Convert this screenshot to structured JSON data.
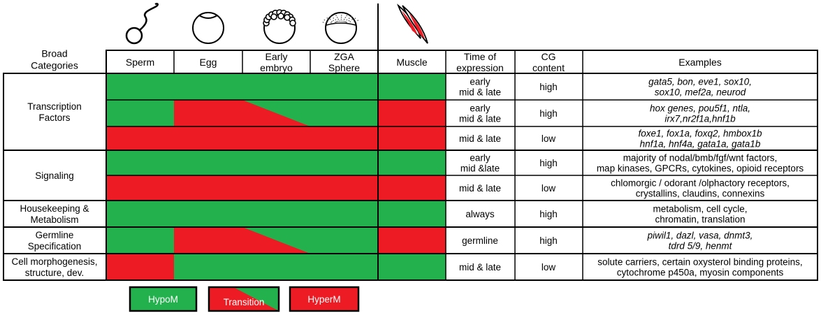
{
  "colors": {
    "hypo": "#22b14c",
    "hyper": "#ed1c24",
    "line": "#000000",
    "background": "#ffffff"
  },
  "header": {
    "broad_categories": [
      "Broad",
      "Categories"
    ],
    "stages": [
      {
        "label": [
          "Sperm"
        ],
        "icon": "sperm-icon"
      },
      {
        "label": [
          "Egg"
        ],
        "icon": "egg-icon"
      },
      {
        "label": [
          "Early",
          "embryo"
        ],
        "icon": "early-embryo-icon"
      },
      {
        "label": [
          "ZGA",
          "Sphere"
        ],
        "icon": "sphere-embryo-icon"
      },
      {
        "label": [
          "Muscle"
        ],
        "icon": "muscle-cells-icon"
      }
    ],
    "time_of_expression": [
      "Time of",
      "expression"
    ],
    "cg_content": [
      "CG",
      "content"
    ],
    "examples": "Examples"
  },
  "groups": [
    {
      "id": "tf",
      "label": [
        "Transcription",
        "Factors"
      ]
    },
    {
      "id": "signaling",
      "label": [
        "Signaling"
      ]
    },
    {
      "id": "housekeeping",
      "label": [
        "Housekeeping &",
        "Metabolism"
      ]
    },
    {
      "id": "germline",
      "label": [
        "Germline",
        "Specification"
      ]
    },
    {
      "id": "morpho",
      "label": [
        "Cell morphogenesis,",
        "structure, dev."
      ]
    }
  ],
  "rows": [
    {
      "group": "tf",
      "embryo_state": "hypo",
      "transition": null,
      "muscle_state": "hypo",
      "time": [
        "early",
        "mid & late"
      ],
      "cg": "high",
      "examples": [
        {
          "text": "gata5, bon, eve1, sox10,",
          "italic": true
        },
        {
          "text": "sox10, mef2a, neurod",
          "italic": true
        }
      ]
    },
    {
      "group": "tf",
      "embryo_state": "transition",
      "transition": "egg-to-sphere",
      "muscle_state": "hyper",
      "time": [
        "early",
        "mid & late"
      ],
      "cg": "high",
      "examples": [
        {
          "text": "hox genes, pou5f1, ntla,",
          "italic": true
        },
        {
          "text": "irx7,nr2f1a,hnf1b",
          "italic": true
        }
      ]
    },
    {
      "group": "tf",
      "embryo_state": "hyper",
      "transition": null,
      "muscle_state": "hyper",
      "time": [
        "mid & late"
      ],
      "cg": "low",
      "examples": [
        {
          "text": "foxe1, fox1a, foxq2, hmbox1b",
          "italic": true
        },
        {
          "text": "hnf1a, hnf4a, gata1a, gata1b",
          "italic": true
        }
      ]
    },
    {
      "group": "signaling",
      "embryo_state": "hypo",
      "transition": null,
      "muscle_state": "hypo",
      "time": [
        "early",
        "mid &late"
      ],
      "cg": "high",
      "examples": [
        {
          "text": "majority of nodal/bmb/fgf/wnt factors,",
          "italic": false
        },
        {
          "text": "map kinases, GPCRs, cytokines, opioid receptors",
          "italic": false
        }
      ]
    },
    {
      "group": "signaling",
      "embryo_state": "hyper",
      "transition": null,
      "muscle_state": "hyper",
      "time": [
        "mid & late"
      ],
      "cg": "low",
      "examples": [
        {
          "text": "chlomorgic / odorant /olphactory receptors,",
          "italic": false
        },
        {
          "text": "crystallins, claudins, connexins",
          "italic": false
        }
      ]
    },
    {
      "group": "housekeeping",
      "embryo_state": "hypo",
      "transition": null,
      "muscle_state": "hypo",
      "time": [
        "always"
      ],
      "cg": "high",
      "examples": [
        {
          "text": "metabolism, cell cycle,",
          "italic": false
        },
        {
          "text": "chromatin, translation",
          "italic": false
        }
      ]
    },
    {
      "group": "germline",
      "embryo_state": "transition",
      "transition": "egg-to-sphere",
      "muscle_state": "hyper",
      "time": [
        "germline"
      ],
      "cg": "high",
      "examples": [
        {
          "text": "piwil1, dazl, vasa, dnmt3,",
          "italic": true
        },
        {
          "text": "tdrd 5/9, henmt",
          "italic": true
        }
      ]
    },
    {
      "group": "morpho",
      "embryo_state": "transition",
      "transition": "sperm-hyper-egg-hypo",
      "muscle_state": "hypo",
      "time": [
        "mid & late"
      ],
      "cg": "low",
      "examples": [
        {
          "text": "solute carriers,  certain oxysterol binding proteins,",
          "italic": false
        },
        {
          "text": "cytochrome p450a, myosin components",
          "italic": false
        }
      ]
    }
  ],
  "legend": [
    {
      "label": "HypoM",
      "state": "hypo"
    },
    {
      "label": "Transition",
      "state": "transition"
    },
    {
      "label": "HyperM",
      "state": "hyper"
    }
  ]
}
